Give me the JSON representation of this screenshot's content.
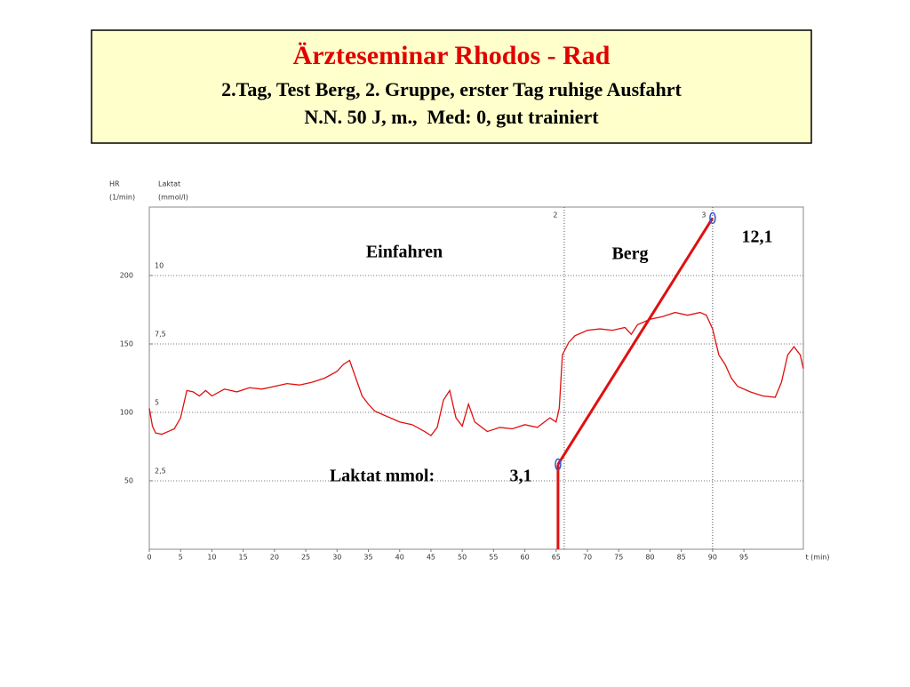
{
  "chart_data": {
    "type": "line",
    "title": "Ärzteseminar Rhodos - Rad",
    "subtitle": [
      "2.Tag, Test Berg, 2. Gruppe, erster Tag ruhige Ausfahrt",
      "N.N. 50 J, m.,  Med: 0, gut trainiert"
    ],
    "y_label": [
      "HR",
      "(1/min)"
    ],
    "y2_label": [
      "Laktat",
      "(mmol/l)"
    ],
    "x_label": "t (min)",
    "annotations": [
      "Einfahren",
      "Berg",
      "Laktat mmol:"
    ],
    "xlim": [
      0,
      104.5
    ],
    "xticks": [
      0,
      5,
      10,
      15,
      20,
      25,
      30,
      35,
      40,
      45,
      50,
      55,
      60,
      65,
      70,
      75,
      80,
      85,
      90,
      95
    ],
    "ylim": [
      0,
      250
    ],
    "yticks": [
      50,
      100,
      150,
      200
    ],
    "y2lim": [
      0,
      12.5
    ],
    "y2ticks": [
      {
        "value": 2.5,
        "label": "2,5"
      },
      5,
      {
        "value": 7.5,
        "label": "7,5"
      },
      10
    ],
    "grid": true,
    "phase_lines": [
      {
        "x": 66.3,
        "label": "2"
      },
      {
        "x": 90,
        "label": "3"
      }
    ],
    "series": [
      {
        "color": "#e01010",
        "x": [
          0,
          0.5,
          1,
          2,
          3,
          4,
          5,
          6,
          7,
          8,
          9,
          10,
          12,
          14,
          16,
          18,
          20,
          22,
          24,
          26,
          28,
          30,
          31,
          32,
          33,
          34,
          35,
          36,
          38,
          40,
          42,
          44,
          45,
          46,
          47,
          48,
          49,
          50,
          51,
          52,
          54,
          56,
          58,
          60,
          62,
          64,
          65,
          65.5,
          66,
          67,
          68,
          70,
          72,
          74,
          76,
          77,
          78,
          80,
          82,
          84,
          86,
          88,
          89,
          90,
          91,
          92,
          93,
          94,
          96,
          98,
          100,
          101,
          102,
          103,
          104,
          104.5
        ],
        "values": [
          103,
          90,
          85,
          84,
          86,
          88,
          96,
          116,
          115,
          112,
          116,
          112,
          117,
          115,
          118,
          117,
          119,
          121,
          120,
          122,
          125,
          130,
          135,
          138,
          125,
          112,
          106,
          101,
          97,
          93,
          91,
          86,
          83,
          89,
          109,
          116,
          96,
          90,
          106,
          93,
          86,
          89,
          88,
          91,
          89,
          96,
          93,
          103,
          142,
          151,
          156,
          160,
          161,
          160,
          162,
          157,
          164,
          168,
          170,
          173,
          171,
          173,
          171,
          161,
          142,
          135,
          125,
          119,
          115,
          112,
          111,
          122,
          142,
          148,
          142,
          132
        ]
      },
      {
        "color": "#e01010",
        "axis": "y2",
        "x": [
          65.3,
          90
        ],
        "values": [
          3.1,
          12.1
        ],
        "value_labels": [
          "3,1",
          "12,1"
        ]
      }
    ]
  }
}
